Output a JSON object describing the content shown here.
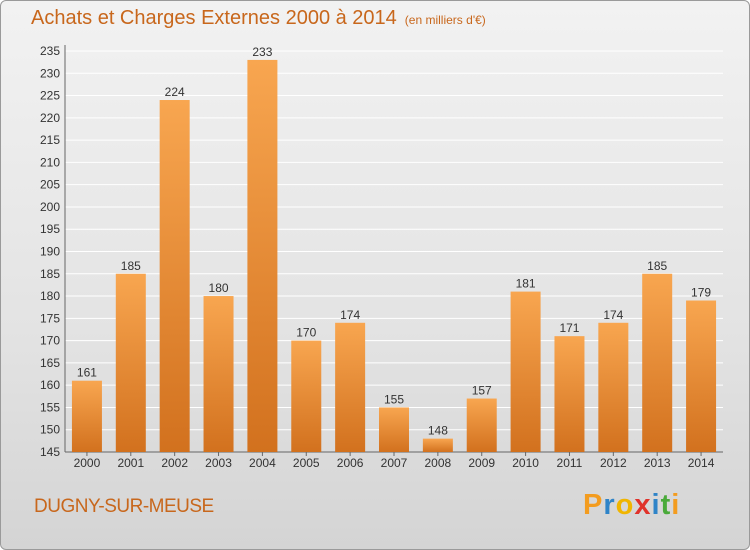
{
  "chart_data": {
    "type": "bar",
    "title": "Achats et Charges Externes 2000 à 2014",
    "subtitle": "(en milliers d'€)",
    "categories": [
      "2000",
      "2001",
      "2002",
      "2003",
      "2004",
      "2005",
      "2006",
      "2007",
      "2008",
      "2009",
      "2010",
      "2011",
      "2012",
      "2013",
      "2014"
    ],
    "values": [
      161,
      185,
      224,
      180,
      233,
      170,
      174,
      155,
      148,
      157,
      181,
      171,
      174,
      185,
      179
    ],
    "ylim": [
      145,
      235
    ],
    "yticks": [
      145,
      150,
      155,
      160,
      165,
      170,
      175,
      180,
      185,
      190,
      195,
      200,
      205,
      210,
      215,
      220,
      225,
      230,
      235
    ],
    "grid": true,
    "colors": {
      "bar_light": "#f8a650",
      "bar_dark": "#d2711e",
      "text_accent": "#c8671c"
    }
  },
  "commune": "DUGNY-SUR-MEUSE",
  "logo": {
    "text": "Proxiti",
    "letters": [
      {
        "ch": "P",
        "color": "#f39c1f"
      },
      {
        "ch": "r",
        "color": "#2f84c8"
      },
      {
        "ch": "o",
        "color": "#f0b500"
      },
      {
        "ch": "x",
        "color": "#e0322a"
      },
      {
        "ch": "i",
        "color": "#2f84c8"
      },
      {
        "ch": "t",
        "color": "#4aaa3a"
      },
      {
        "ch": "i",
        "color": "#f39c1f"
      }
    ]
  }
}
